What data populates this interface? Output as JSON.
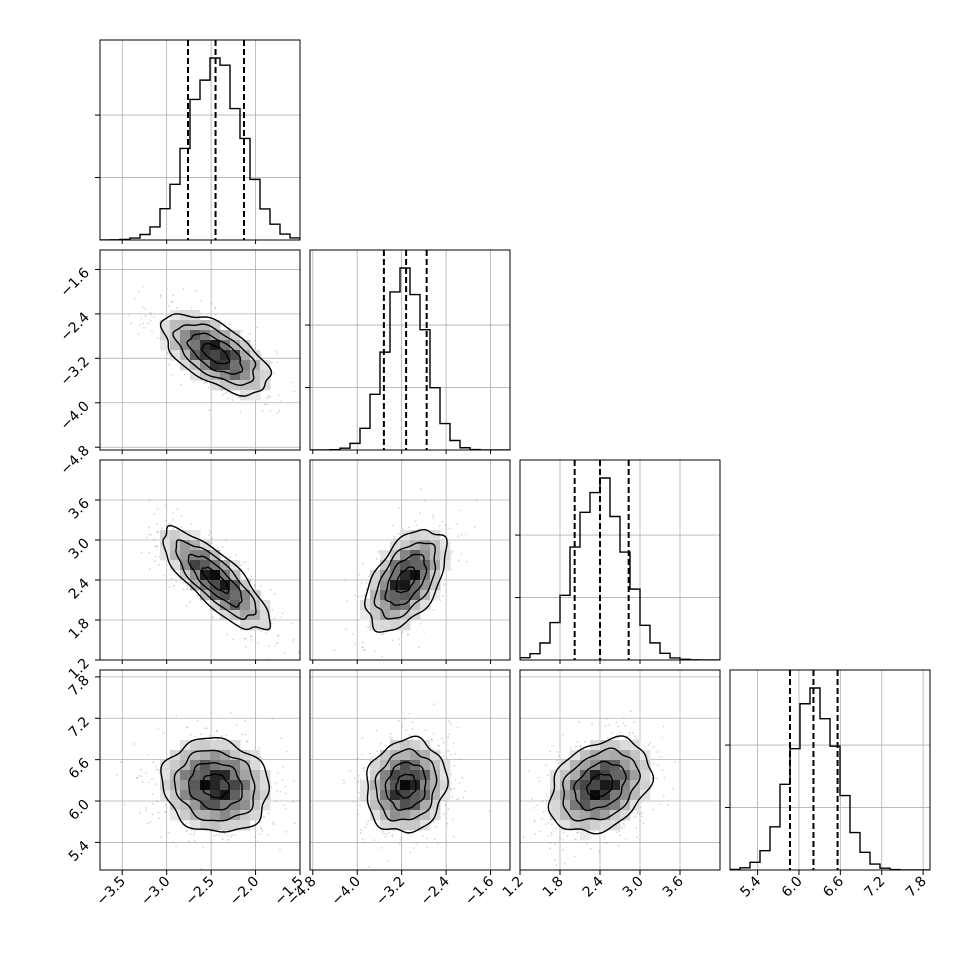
{
  "chart_data": {
    "type": "corner",
    "title": "",
    "grid": true,
    "colors": {
      "line": "#000000",
      "grid": "#b0b0b0",
      "points": "#8a8a8a",
      "background": "#ffffff"
    },
    "parameters": [
      {
        "label": "",
        "range": [
          -3.75,
          -1.5
        ],
        "ticks": [
          "-3.5",
          "-3.0",
          "-2.5",
          "-2.0",
          "-1.5"
        ],
        "tick_values": [
          -3.5,
          -3.0,
          -2.5,
          -2.0,
          -1.5
        ],
        "mean": -2.45,
        "sd": 0.3,
        "quantiles": [
          -2.76,
          -2.45,
          -2.13
        ]
      },
      {
        "label": "",
        "range": [
          -4.85,
          -1.25
        ],
        "ticks": [
          "-4.8",
          "-4.0",
          "-3.2",
          "-2.4",
          "-1.6"
        ],
        "tick_values": [
          -4.8,
          -4.0,
          -3.2,
          -2.4,
          -1.6
        ],
        "mean": -3.12,
        "sd": 0.36,
        "quantiles": [
          -3.52,
          -3.12,
          -2.75
        ]
      },
      {
        "label": "",
        "range": [
          1.2,
          4.2
        ],
        "ticks": [
          "1.2",
          "1.8",
          "2.4",
          "3.0",
          "3.6"
        ],
        "tick_values": [
          1.2,
          1.8,
          2.4,
          3.0,
          3.6
        ],
        "mean": 2.4,
        "sd": 0.38,
        "quantiles": [
          2.02,
          2.4,
          2.83
        ]
      },
      {
        "label": "",
        "range": [
          5.0,
          7.9
        ],
        "ticks": [
          "5.4",
          "6.0",
          "6.6",
          "7.2",
          "7.8"
        ],
        "tick_values": [
          5.4,
          6.0,
          6.6,
          7.2,
          7.8
        ],
        "mean": 6.22,
        "sd": 0.34,
        "quantiles": [
          5.87,
          6.21,
          6.56
        ]
      }
    ],
    "correlations": [
      [
        1,
        -0.6,
        -0.8,
        -0.1
      ],
      [
        -0.6,
        1,
        0.5,
        0.1
      ],
      [
        -0.8,
        0.5,
        1,
        0.3
      ],
      [
        -0.1,
        0.1,
        0.3,
        1
      ]
    ],
    "contour_levels": [
      0.5,
      1.0,
      1.5,
      2.0
    ],
    "samples": 10000
  }
}
